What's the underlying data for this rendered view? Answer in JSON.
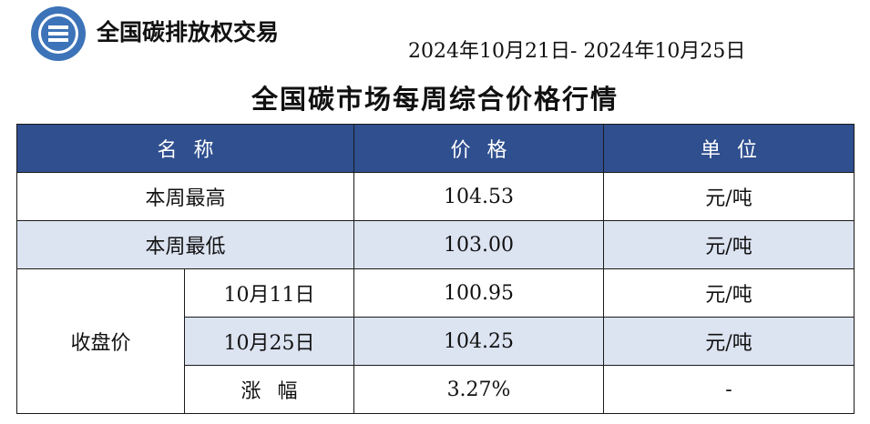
{
  "header": {
    "brand": "全国碳排放权交易",
    "date_range": "2024年10月21日- 2024年10月25日",
    "title": "全国碳市场每周综合价格行情"
  },
  "table": {
    "columns": [
      "名称",
      "价格",
      "单位"
    ],
    "weekly_high": {
      "label": "本周最高",
      "price": "104.53",
      "unit": "元/吨"
    },
    "weekly_low": {
      "label": "本周最低",
      "price": "103.00",
      "unit": "元/吨"
    },
    "closing": {
      "label": "收盘价",
      "rows": [
        {
          "date": "10月11日",
          "price": "100.95",
          "unit": "元/吨"
        },
        {
          "date": "10月25日",
          "price": "104.25",
          "unit": "元/吨"
        }
      ],
      "change": {
        "label": "涨幅",
        "price": "3.27%",
        "unit": "-"
      }
    }
  }
}
